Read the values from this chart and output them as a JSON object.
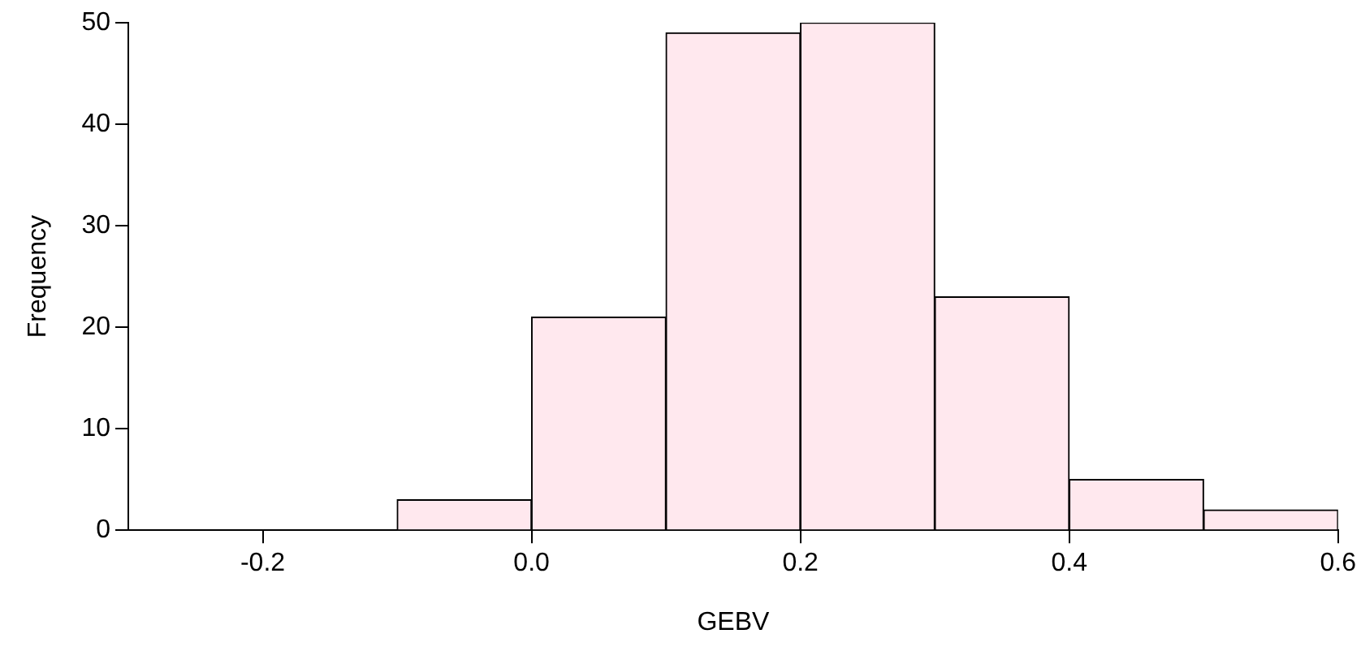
{
  "chart_data": {
    "type": "histogram",
    "xlabel": "GEBV",
    "ylabel": "Frequency",
    "bins": [
      -0.3,
      -0.2,
      -0.1,
      0.0,
      0.1,
      0.2,
      0.3,
      0.4,
      0.5,
      0.6
    ],
    "values": [
      0,
      0,
      3,
      21,
      49,
      50,
      23,
      5,
      2
    ],
    "color": "#ffe8ee",
    "xlim": [
      -0.3,
      0.6
    ],
    "xticks": [
      -0.2,
      {
        "value": 0,
        "label": "0.0"
      },
      0.2,
      0.4,
      0.6
    ],
    "ylim": [
      0,
      50
    ],
    "yticks": [
      0,
      10,
      20,
      30,
      40,
      50
    ],
    "grid": false,
    "legend": false
  }
}
